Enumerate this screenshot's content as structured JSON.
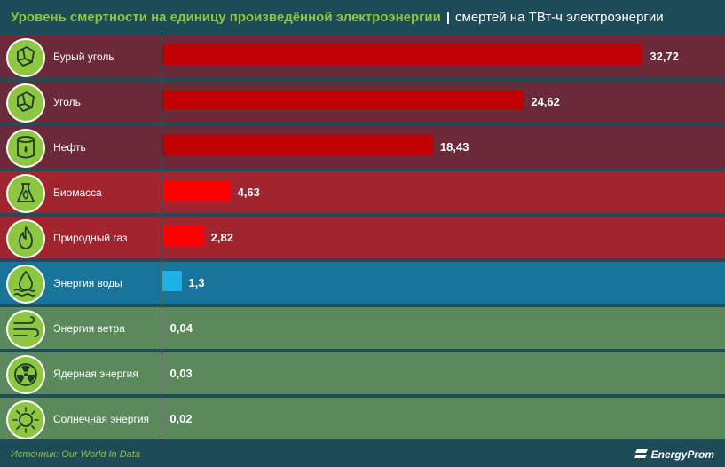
{
  "title": {
    "main": "Уровень смертности на единицу произведённой электроэнергии",
    "separator": "|",
    "subtitle": "смертей на ТВт-ч электроэнергии"
  },
  "footer": {
    "source": "Источник: Our World In Data",
    "brand": "EnergyProm"
  },
  "colors": {
    "fossil_row": "#6b2a39",
    "other_row": "#a0252e",
    "hydro_row": "#18749a",
    "clean_row": "#5a8a5c",
    "fossil_bar": "#c00000",
    "other_bar": "#ff0000",
    "hydro_bar": "#1ab2e8",
    "icon_fill": "#8dc63f"
  },
  "chart_data": {
    "type": "bar",
    "orientation": "horizontal",
    "categories": [
      "Бурый уголь",
      "Уголь",
      "Нефть",
      "Биомасса",
      "Природный газ",
      "Энергия воды",
      "Энергия ветра",
      "Ядерная энергия",
      "Солнечная энергия"
    ],
    "values": [
      32.72,
      24.62,
      18.43,
      4.63,
      2.82,
      1.3,
      0.04,
      0.03,
      0.02
    ],
    "value_labels": [
      "32,72",
      "24,62",
      "18,43",
      "4,63",
      "2,82",
      "1,3",
      "0,04",
      "0,03",
      "0,02"
    ],
    "icons": [
      "coal-icon",
      "coal-icon",
      "oil-barrel-icon",
      "biomass-icon",
      "gas-flame-icon",
      "water-drop-icon",
      "wind-icon",
      "radiation-icon",
      "sun-icon"
    ],
    "groups": [
      "fossil",
      "fossil",
      "fossil",
      "other",
      "other",
      "hydro",
      "clean",
      "clean",
      "clean"
    ],
    "title": "Уровень смертности на единицу произведённой электроэнергии",
    "xlim": [
      0,
      33
    ]
  }
}
